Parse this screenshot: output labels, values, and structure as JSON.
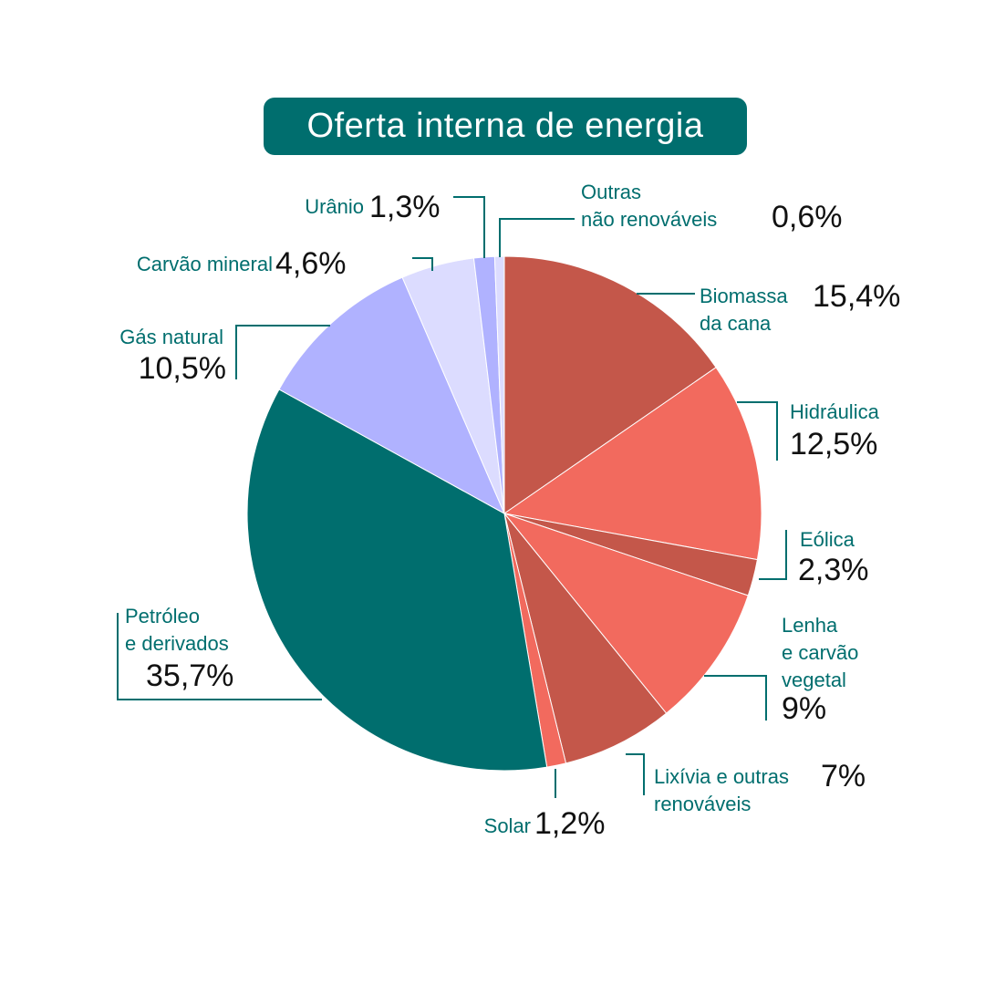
{
  "chart_data": {
    "type": "pie",
    "title": "Oferta interna de energia",
    "slices": [
      {
        "name_lines": [
          "Biomassa",
          "da cana"
        ],
        "label": "15,4%",
        "value": 15.4,
        "color": "#c4574a"
      },
      {
        "name_lines": [
          "Hidráulica"
        ],
        "label": "12,5%",
        "value": 12.5,
        "color": "#f26a5e"
      },
      {
        "name_lines": [
          "Eólica"
        ],
        "label": "2,3%",
        "value": 2.3,
        "color": "#c4574a"
      },
      {
        "name_lines": [
          "Lenha",
          "e carvão",
          "vegetal"
        ],
        "label": "9%",
        "value": 9.0,
        "color": "#f26a5e"
      },
      {
        "name_lines": [
          "Lixívia e outras",
          "renováveis"
        ],
        "label": "7%",
        "value": 7.0,
        "color": "#c4574a"
      },
      {
        "name_lines": [
          "Solar"
        ],
        "label": "1,2%",
        "value": 1.2,
        "color": "#f26a5e"
      },
      {
        "name_lines": [
          "Petróleo",
          "e derivados"
        ],
        "label": "35,7%",
        "value": 35.7,
        "color": "#006e6e"
      },
      {
        "name_lines": [
          "Gás natural"
        ],
        "label": "10,5%",
        "value": 10.5,
        "color": "#b0b2ff"
      },
      {
        "name_lines": [
          "Carvão mineral"
        ],
        "label": "4,6%",
        "value": 4.6,
        "color": "#dcdcff"
      },
      {
        "name_lines": [
          "Urânio"
        ],
        "label": "1,3%",
        "value": 1.3,
        "color": "#b0b2ff"
      },
      {
        "name_lines": [
          "Outras",
          "não renováveis"
        ],
        "label": "0,6%",
        "value": 0.6,
        "color": "#dcdcff"
      }
    ],
    "accent_color": "#006e6e"
  }
}
